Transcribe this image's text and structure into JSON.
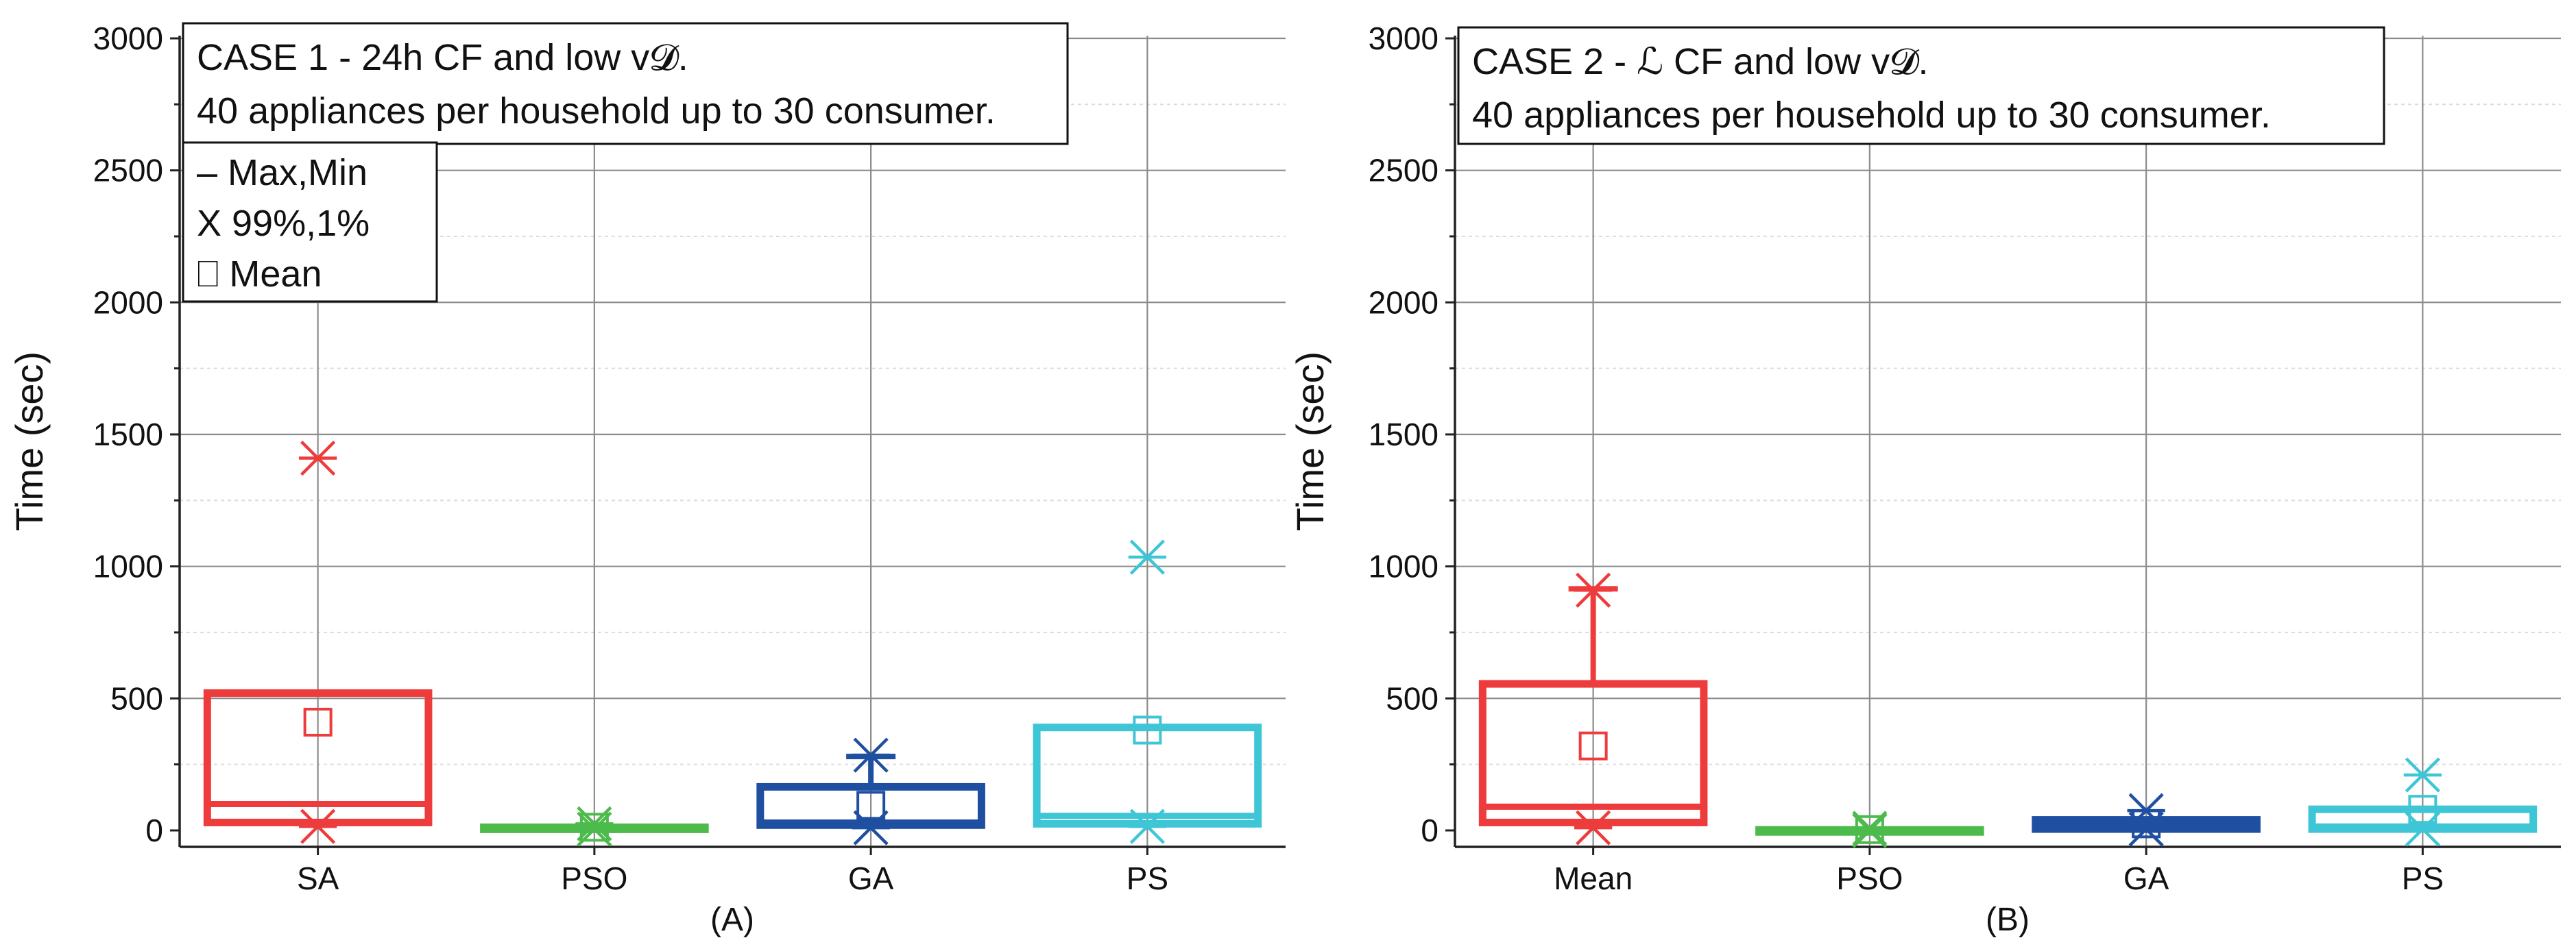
{
  "colors": {
    "SA": "#ee3b3b",
    "Mean": "#ee3b3b",
    "PSO": "#4cbb4c",
    "GA": "#1f4fa0",
    "PS": "#3ec6d6"
  },
  "chart_data": [
    {
      "type": "box",
      "panel_label": "(A)",
      "ylabel": "Time (sec)",
      "ylim": [
        0,
        3000
      ],
      "yticks": [
        "0",
        "500",
        "1000",
        "1500",
        "2000",
        "2500",
        "3000"
      ],
      "annotation": {
        "line1": "CASE 1 - 24h CF and low v𝓓.",
        "line2": "40 appliances per household up to 30 consumer."
      },
      "legend": [
        "– Max,Min",
        "X 99%,1%",
        "⎕ Mean"
      ],
      "categories": [
        "SA",
        "PSO",
        "GA",
        "PS"
      ],
      "boxes": [
        {
          "name": "SA",
          "q1": 30,
          "median": 100,
          "q3": 520,
          "mean": 410,
          "p99": 1410,
          "p1": 15,
          "max": null,
          "min": null
        },
        {
          "name": "PSO",
          "q1": 5,
          "median": 8,
          "q3": 12,
          "mean": 12,
          "p99": 25,
          "p1": 5,
          "max": null,
          "min": null
        },
        {
          "name": "GA",
          "q1": 20,
          "median": 30,
          "q3": 165,
          "mean": 95,
          "p99": 285,
          "p1": 10,
          "max": 280,
          "min": null
        },
        {
          "name": "PS",
          "q1": 25,
          "median": 55,
          "q3": 390,
          "mean": 380,
          "p99": 1035,
          "p1": 15,
          "max": null,
          "min": null
        }
      ]
    },
    {
      "type": "box",
      "panel_label": "(B)",
      "ylabel": "Time (sec)",
      "ylim": [
        0,
        3000
      ],
      "yticks": [
        "0",
        "500",
        "1000",
        "1500",
        "2000",
        "2500",
        "3000"
      ],
      "annotation": {
        "line1": "CASE 2 - ℒ CF and low v𝓓.",
        "line2": "40 appliances per household up to 30 consumer."
      },
      "categories": [
        "Mean",
        "PSO",
        "GA",
        "PS"
      ],
      "boxes": [
        {
          "name": "Mean",
          "q1": 30,
          "median": 90,
          "q3": 555,
          "mean": 320,
          "p99": 910,
          "p1": 10,
          "max": 915,
          "min": null
        },
        {
          "name": "PSO",
          "q1": 0,
          "median": 0,
          "q3": 2,
          "mean": 3,
          "p99": 8,
          "p1": 0,
          "max": null,
          "min": null
        },
        {
          "name": "GA",
          "q1": 5,
          "median": 20,
          "q3": 40,
          "mean": 25,
          "p99": 75,
          "p1": 5,
          "max": null,
          "min": null
        },
        {
          "name": "PS",
          "q1": 5,
          "median": 15,
          "q3": 80,
          "mean": 80,
          "p99": 210,
          "p1": 5,
          "max": null,
          "min": null
        }
      ]
    }
  ]
}
